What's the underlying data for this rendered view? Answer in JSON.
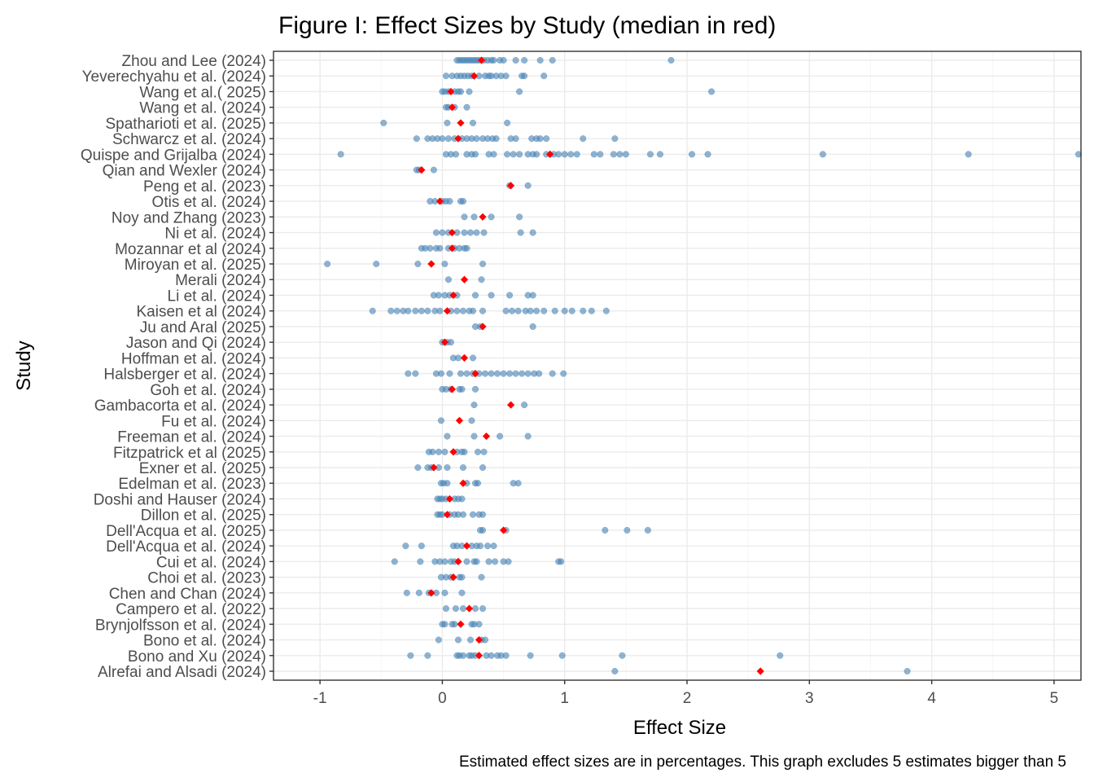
{
  "chart_data": {
    "type": "scatter",
    "title": "Figure I: Effect Sizes by Study (median in red)",
    "xlabel": "Effect Size",
    "ylabel": "Study",
    "caption": "Estimated effect sizes are in percentages. This graph excludes 5 estimates bigger than 5",
    "xlim": [
      -1.38,
      5.22
    ],
    "x_ticks": [
      -1,
      0,
      1,
      2,
      3,
      4,
      5
    ],
    "x_tick_labels": [
      "-1",
      "0",
      "1",
      "2",
      "3",
      "4",
      "5"
    ],
    "grid": true,
    "point_color": "#4682b4",
    "median_color": "#ff0000",
    "studies": [
      {
        "name": "Zhou and Lee (2024)",
        "median": 0.32,
        "values": [
          0.12,
          0.14,
          0.16,
          0.18,
          0.2,
          0.22,
          0.24,
          0.26,
          0.28,
          0.3,
          0.34,
          0.37,
          0.4,
          0.42,
          0.47,
          0.5,
          0.6,
          0.67,
          0.8,
          0.9,
          1.87
        ]
      },
      {
        "name": "Yeverechyahu et al. (2024)",
        "median": 0.26,
        "values": [
          0.03,
          0.08,
          0.12,
          0.15,
          0.18,
          0.21,
          0.24,
          0.3,
          0.35,
          0.38,
          0.4,
          0.44,
          0.48,
          0.52,
          0.65,
          0.67,
          0.83
        ]
      },
      {
        "name": "Wang et al.( 2025)",
        "median": 0.07,
        "values": [
          0.0,
          0.02,
          0.05,
          0.1,
          0.13,
          0.15,
          0.22,
          0.63,
          2.2
        ]
      },
      {
        "name": "Wang et al. (2024)",
        "median": 0.08,
        "values": [
          0.03,
          0.05,
          0.1,
          0.2
        ]
      },
      {
        "name": "Spatharioti et al. (2025)",
        "median": 0.15,
        "values": [
          -0.48,
          0.04,
          0.25,
          0.53
        ]
      },
      {
        "name": "Schwarcz et al. (2024)",
        "median": 0.13,
        "values": [
          -0.21,
          -0.12,
          -0.08,
          -0.04,
          0.0,
          0.05,
          0.1,
          0.16,
          0.2,
          0.24,
          0.28,
          0.33,
          0.37,
          0.41,
          0.44,
          0.56,
          0.6,
          0.73,
          0.77,
          0.8,
          0.85,
          1.15,
          1.41
        ]
      },
      {
        "name": "Quispe and  Grijalba (2024)",
        "median": 0.88,
        "values": [
          -0.83,
          0.03,
          0.07,
          0.11,
          0.2,
          0.24,
          0.27,
          0.38,
          0.42,
          0.53,
          0.58,
          0.63,
          0.7,
          0.74,
          0.77,
          0.85,
          0.91,
          0.95,
          1.0,
          1.05,
          1.1,
          1.24,
          1.29,
          1.4,
          1.45,
          1.5,
          1.7,
          1.78,
          2.04,
          2.17,
          3.11,
          4.3,
          5.2
        ]
      },
      {
        "name": "Qian and Wexler (2024)",
        "median": -0.17,
        "values": [
          -0.21,
          -0.19,
          -0.07
        ]
      },
      {
        "name": "Peng et al. (2023)",
        "median": 0.56,
        "values": [
          0.55,
          0.7
        ]
      },
      {
        "name": "Otis et al. (2024)",
        "median": -0.02,
        "values": [
          -0.1,
          -0.06,
          0.0,
          0.03,
          0.06,
          0.15,
          0.17
        ]
      },
      {
        "name": "Noy and Zhang (2023)",
        "median": 0.33,
        "values": [
          0.18,
          0.26,
          0.4,
          0.63
        ]
      },
      {
        "name": "Ni et al. (2024)",
        "median": 0.08,
        "values": [
          -0.05,
          0.0,
          0.05,
          0.12,
          0.18,
          0.23,
          0.28,
          0.34,
          0.64,
          0.74
        ]
      },
      {
        "name": "Mozannar et al (2024)",
        "median": 0.08,
        "values": [
          -0.17,
          -0.14,
          -0.1,
          -0.05,
          -0.02,
          0.05,
          0.1,
          0.14,
          0.18,
          0.2
        ]
      },
      {
        "name": "Miroyan et al. (2025)",
        "median": -0.09,
        "values": [
          -0.94,
          -0.54,
          -0.2,
          0.02,
          0.33
        ]
      },
      {
        "name": "Merali (2024)",
        "median": 0.18,
        "values": [
          0.05,
          0.32
        ]
      },
      {
        "name": "Li et al. (2024)",
        "median": 0.09,
        "values": [
          -0.07,
          -0.03,
          0.02,
          0.06,
          0.12,
          0.27,
          0.4,
          0.55,
          0.7,
          0.74
        ]
      },
      {
        "name": "Kaisen et al (2024)",
        "median": 0.04,
        "values": [
          -0.57,
          -0.42,
          -0.37,
          -0.32,
          -0.28,
          -0.22,
          -0.17,
          -0.12,
          -0.06,
          -0.02,
          0.07,
          0.12,
          0.17,
          0.22,
          0.25,
          0.33,
          0.52,
          0.57,
          0.62,
          0.68,
          0.72,
          0.77,
          0.83,
          0.92,
          1.0,
          1.06,
          1.15,
          1.22,
          1.34
        ]
      },
      {
        "name": "Ju and Aral (2025)",
        "median": 0.33,
        "values": [
          0.27,
          0.31,
          0.74
        ]
      },
      {
        "name": "Jason and Qi (2024)",
        "median": 0.02,
        "values": [
          0.0,
          0.04,
          0.07
        ]
      },
      {
        "name": "Hoffman et al. (2024)",
        "median": 0.18,
        "values": [
          0.09,
          0.13,
          0.25
        ]
      },
      {
        "name": "Halsberger et al. (2024)",
        "median": 0.27,
        "values": [
          -0.28,
          -0.22,
          -0.05,
          -0.01,
          0.06,
          0.15,
          0.2,
          0.25,
          0.3,
          0.35,
          0.4,
          0.45,
          0.5,
          0.55,
          0.6,
          0.65,
          0.7,
          0.75,
          0.79,
          0.9,
          0.99
        ]
      },
      {
        "name": "Goh et al. (2024)",
        "median": 0.08,
        "values": [
          0.0,
          0.03,
          0.07,
          0.14,
          0.16,
          0.27
        ]
      },
      {
        "name": "Gambacorta et al. (2024)",
        "median": 0.56,
        "values": [
          0.26,
          0.67
        ]
      },
      {
        "name": "Fu et al. (2024)",
        "median": 0.14,
        "values": [
          -0.01,
          0.24
        ]
      },
      {
        "name": "Freeman et al. (2024)",
        "median": 0.36,
        "values": [
          0.04,
          0.26,
          0.47,
          0.7
        ]
      },
      {
        "name": "Fitzpatrick et al (2025)",
        "median": 0.09,
        "values": [
          -0.11,
          -0.08,
          -0.03,
          0.02,
          0.12,
          0.16,
          0.18,
          0.29,
          0.34
        ]
      },
      {
        "name": "Exner et al. (2025)",
        "median": -0.07,
        "values": [
          -0.2,
          -0.12,
          -0.09,
          -0.03,
          0.04,
          0.17,
          0.33
        ]
      },
      {
        "name": "Edelman et al. (2023)",
        "median": 0.17,
        "values": [
          -0.01,
          0.01,
          0.04,
          0.2,
          0.27,
          0.29,
          0.58,
          0.62
        ]
      },
      {
        "name": "Doshi and Hauser (2024)",
        "median": 0.06,
        "values": [
          -0.04,
          -0.02,
          0.0,
          0.03,
          0.1,
          0.13,
          0.16
        ]
      },
      {
        "name": "Dillon et al. (2025)",
        "median": 0.04,
        "values": [
          -0.04,
          -0.02,
          0.0,
          0.06,
          0.1,
          0.13,
          0.17,
          0.25,
          0.3,
          0.33
        ]
      },
      {
        "name": "Dell'Acqua et al. (2025)",
        "median": 0.5,
        "values": [
          0.31,
          0.33,
          0.52,
          1.33,
          1.51,
          1.68
        ]
      },
      {
        "name": "Dell'Acqua et al. (2024)",
        "median": 0.2,
        "values": [
          -0.3,
          -0.17,
          0.09,
          0.12,
          0.16,
          0.24,
          0.28,
          0.31,
          0.37,
          0.42
        ]
      },
      {
        "name": "Cui et al. (2024)",
        "median": 0.13,
        "values": [
          -0.39,
          -0.18,
          -0.06,
          -0.02,
          0.02,
          0.07,
          0.1,
          0.2,
          0.26,
          0.28,
          0.38,
          0.43,
          0.5,
          0.54,
          0.95,
          0.97
        ]
      },
      {
        "name": "Choi et al. (2023)",
        "median": 0.09,
        "values": [
          -0.01,
          0.03,
          0.07,
          0.14,
          0.16,
          0.32
        ]
      },
      {
        "name": "Chen and Chan (2024)",
        "median": -0.09,
        "values": [
          -0.29,
          -0.19,
          -0.11,
          -0.05,
          0.02,
          0.16
        ]
      },
      {
        "name": "Campero et al. (2022)",
        "median": 0.22,
        "values": [
          0.03,
          0.11,
          0.17,
          0.27,
          0.33
        ]
      },
      {
        "name": "Brynjolfsson et al. (2024)",
        "median": 0.15,
        "values": [
          0.0,
          0.02,
          0.08,
          0.1,
          0.24,
          0.26,
          0.3
        ]
      },
      {
        "name": "Bono et al. (2024)",
        "median": 0.3,
        "values": [
          -0.03,
          0.13,
          0.23,
          0.32,
          0.35
        ]
      },
      {
        "name": "Bono and Xu (2024)",
        "median": 0.3,
        "values": [
          -0.26,
          -0.12,
          0.12,
          0.14,
          0.17,
          0.22,
          0.24,
          0.27,
          0.36,
          0.4,
          0.45,
          0.48,
          0.52,
          0.72,
          0.98,
          1.47,
          2.76
        ]
      },
      {
        "name": "Alrefai and Alsadi (2024)",
        "median": 2.6,
        "values": [
          1.41,
          3.8
        ]
      }
    ]
  }
}
